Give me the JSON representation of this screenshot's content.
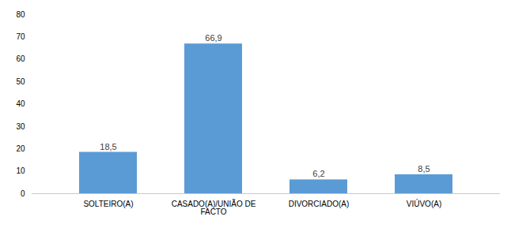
{
  "chart_data": {
    "type": "bar",
    "categories": [
      "SOLTEIRO(A)",
      "CASADO(A)/UNIÃO DE\nFACTO",
      "DIVORCIADO(A)",
      "VIÚVO(A)"
    ],
    "values": [
      18.5,
      66.9,
      6.2,
      8.5
    ],
    "value_labels": [
      "18,5",
      "66,9",
      "6,2",
      "8,5"
    ],
    "data_labels": true,
    "color": "#5b9bd5",
    "ylim": [
      0,
      80
    ],
    "yticks": [
      0,
      10,
      20,
      30,
      40,
      50,
      60,
      70,
      80
    ],
    "grid": false
  }
}
